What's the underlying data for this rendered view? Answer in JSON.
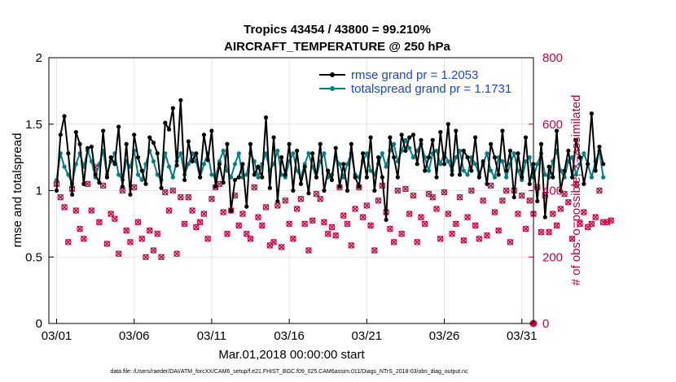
{
  "chart_data": {
    "type": "line",
    "title_line1": "Tropics 43454 / 43800 = 99.210%",
    "title_line2": "AIRCRAFT_TEMPERATURE @ 250 hPa",
    "xlabel": "Mar.01,2018 00:00:00 start",
    "ylabel_left": "rmse and totalspread",
    "ylabel_right": "# of obs: o=possible; ×=assimilated",
    "footnote": "data file: /Users/raeder/DAI/ATM_forcXX/CAM6_setup/f.e21.FHIST_BGC.f09_025.CAM6assim.011/Diags_NTrS_2018-03/obs_diag_output.nc",
    "xlim": [
      0.5,
      31.75
    ],
    "ylim_left": [
      0,
      2
    ],
    "ylim_right": [
      0,
      800
    ],
    "x_ticks": [
      1,
      6,
      11,
      16,
      21,
      26,
      31
    ],
    "x_tick_labels": [
      "03/01",
      "03/06",
      "03/11",
      "03/16",
      "03/21",
      "03/26",
      "03/31"
    ],
    "y_left_ticks": [
      0,
      0.5,
      1,
      1.5,
      2
    ],
    "y_left_tick_labels": [
      "0",
      "0.5",
      "1",
      "1.5",
      "2"
    ],
    "y_right_ticks": [
      0,
      200,
      400,
      600,
      800
    ],
    "y_right_tick_labels": [
      "0",
      "200",
      "400",
      "600",
      "800"
    ],
    "grid": true,
    "legend_position": "top-right",
    "colors": {
      "rmse": "#000000",
      "spread": "#008080",
      "obs": "#c8003c",
      "legend_text": "#1a44e0",
      "grid": "#e6e6e6"
    },
    "x_start": 1,
    "x_step": 0.25,
    "series": [
      {
        "name": "rmse grand pr = 1.2053",
        "axis": "left",
        "values": [
          1.0,
          1.42,
          1.56,
          1.28,
          0.97,
          1.44,
          1.35,
          1.05,
          1.32,
          1.33,
          1.12,
          1.06,
          1.45,
          1.1,
          1.25,
          1.2,
          1.48,
          1.03,
          1.35,
          0.97,
          1.42,
          1.25,
          1.15,
          1.05,
          1.4,
          1.36,
          1.28,
          1.02,
          1.51,
          1.46,
          1.62,
          1.19,
          1.68,
          1.08,
          1.37,
          1.22,
          1.28,
          1.1,
          1.42,
          1.23,
          1.45,
          1.03,
          1.2,
          1.06,
          1.35,
          0.85,
          1.08,
          1.1,
          1.2,
          0.88,
          1.35,
          1.12,
          1.18,
          1.1,
          1.55,
          1.02,
          1.4,
          0.92,
          1.25,
          1.12,
          1.35,
          1.0,
          1.3,
          1.05,
          1.18,
          0.98,
          1.28,
          1.1,
          1.35,
          1.0,
          1.15,
          1.08,
          1.32,
          1.03,
          1.2,
          1.0,
          1.35,
          1.1,
          1.03,
          1.28,
          1.1,
          1.4,
          1.0,
          1.25,
          1.1,
          0.78,
          1.4,
          1.25,
          1.1,
          1.42,
          1.3,
          1.4,
          1.42,
          1.2,
          1.38,
          1.15,
          1.25,
          1.38,
          1.1,
          1.44,
          1.2,
          1.5,
          1.12,
          1.45,
          1.12,
          1.3,
          1.25,
          1.15,
          1.4,
          1.1,
          1.22,
          1.05,
          1.35,
          1.25,
          1.12,
          1.45,
          1.15,
          1.3,
          0.95,
          1.28,
          1.1,
          1.4,
          1.05,
          1.2,
          0.92,
          1.35,
          0.8,
          1.18,
          1.1,
          1.45,
          1.0,
          1.15,
          1.3,
          1.1,
          1.38,
          1.25,
          1.05,
          1.2,
          1.58,
          1.15,
          1.33,
          1.2
        ]
      },
      {
        "name": "totalspread grand pr = 1.1731",
        "axis": "left",
        "values": [
          1.08,
          1.28,
          1.18,
          1.12,
          1.05,
          1.2,
          1.28,
          1.18,
          1.3,
          1.22,
          1.1,
          1.2,
          1.3,
          1.12,
          1.22,
          1.28,
          1.12,
          1.08,
          1.22,
          1.18,
          1.3,
          1.12,
          1.08,
          1.2,
          1.3,
          1.22,
          1.12,
          1.08,
          1.28,
          1.18,
          1.1,
          1.22,
          1.28,
          1.12,
          1.2,
          1.28,
          1.22,
          1.1,
          1.2,
          1.28,
          1.12,
          1.1,
          1.22,
          1.3,
          1.15,
          1.1,
          1.2,
          1.28,
          1.1,
          1.12,
          1.28,
          1.22,
          1.1,
          1.2,
          1.28,
          1.15,
          1.2,
          1.3,
          1.12,
          1.1,
          1.22,
          1.28,
          1.15,
          1.1,
          1.2,
          1.28,
          1.18,
          1.1,
          1.22,
          1.28,
          1.1,
          1.12,
          1.25,
          1.2,
          1.1,
          1.2,
          1.28,
          1.12,
          1.1,
          1.22,
          1.28,
          1.15,
          1.12,
          1.2,
          1.28,
          1.18,
          1.3,
          1.35,
          1.22,
          1.3,
          1.38,
          1.32,
          1.25,
          1.3,
          1.35,
          1.25,
          1.15,
          1.28,
          1.3,
          1.2,
          1.28,
          1.22,
          1.15,
          1.25,
          1.3,
          1.15,
          1.12,
          1.25,
          1.2,
          1.12,
          1.2,
          1.28,
          1.15,
          1.1,
          1.25,
          1.22,
          1.1,
          1.2,
          1.28,
          1.15,
          1.08,
          1.22,
          1.25,
          1.1,
          1.2,
          1.28,
          1.12,
          1.1,
          1.22,
          1.3,
          1.15,
          1.1,
          1.22,
          1.25,
          1.12,
          1.2,
          1.28,
          1.2,
          1.1,
          1.22,
          1.3,
          1.1
        ]
      },
      {
        "name": "possible",
        "axis": "right",
        "values": [
          420,
          380,
          350,
          245,
          405,
          340,
          285,
          255,
          420,
          340,
          470,
          305,
          415,
          240,
          330,
          315,
          210,
          400,
          280,
          245,
          410,
          305,
          255,
          200,
          280,
          220,
          270,
          200,
          395,
          340,
          400,
          210,
          380,
          300,
          380,
          340,
          290,
          305,
          330,
          255,
          375,
          410,
          420,
          335,
          270,
          340,
          385,
          295,
          330,
          270,
          255,
          410,
          320,
          295,
          350,
          235,
          245,
          355,
          230,
          370,
          300,
          255,
          345,
          375,
          300,
          220,
          310,
          390,
          375,
          305,
          270,
          290,
          265,
          410,
          325,
          300,
          235,
          345,
          410,
          320,
          355,
          295,
          220,
          370,
          415,
          335,
          285,
          245,
          400,
          270,
          405,
          330,
          385,
          245,
          320,
          300,
          390,
          380,
          345,
          255,
          395,
          330,
          270,
          300,
          380,
          250,
          320,
          400,
          295,
          255,
          370,
          265,
          415,
          335,
          280,
          370,
          400,
          245,
          400,
          330,
          385,
          285,
          370,
          330,
          410,
          275,
          385,
          275,
          330,
          295,
          345,
          390,
          365,
          255,
          420,
          300,
          335,
          290,
          300,
          320,
          400,
          305,
          305,
          310
        ]
      },
      {
        "name": "assimilated",
        "axis": "right",
        "values": [
          420,
          380,
          350,
          245,
          405,
          340,
          285,
          255,
          420,
          340,
          470,
          305,
          415,
          240,
          330,
          315,
          210,
          400,
          280,
          245,
          410,
          305,
          255,
          200,
          280,
          220,
          270,
          200,
          395,
          340,
          400,
          210,
          380,
          300,
          380,
          340,
          290,
          305,
          330,
          255,
          375,
          410,
          420,
          335,
          270,
          340,
          385,
          295,
          330,
          270,
          255,
          410,
          320,
          295,
          350,
          235,
          245,
          355,
          230,
          370,
          300,
          255,
          345,
          375,
          300,
          220,
          310,
          390,
          375,
          305,
          270,
          290,
          265,
          410,
          325,
          300,
          235,
          345,
          410,
          320,
          355,
          295,
          220,
          370,
          415,
          335,
          285,
          245,
          400,
          270,
          405,
          330,
          385,
          245,
          320,
          300,
          390,
          380,
          345,
          255,
          395,
          330,
          270,
          300,
          380,
          250,
          320,
          400,
          295,
          255,
          370,
          265,
          415,
          335,
          280,
          370,
          400,
          245,
          400,
          330,
          385,
          285,
          370,
          330,
          410,
          275,
          385,
          275,
          330,
          295,
          345,
          390,
          365,
          255,
          420,
          300,
          335,
          290,
          300,
          320,
          400,
          305,
          305,
          310
        ]
      }
    ],
    "end_marker": {
      "x": 31.75,
      "y": 0,
      "axis": "right"
    }
  }
}
